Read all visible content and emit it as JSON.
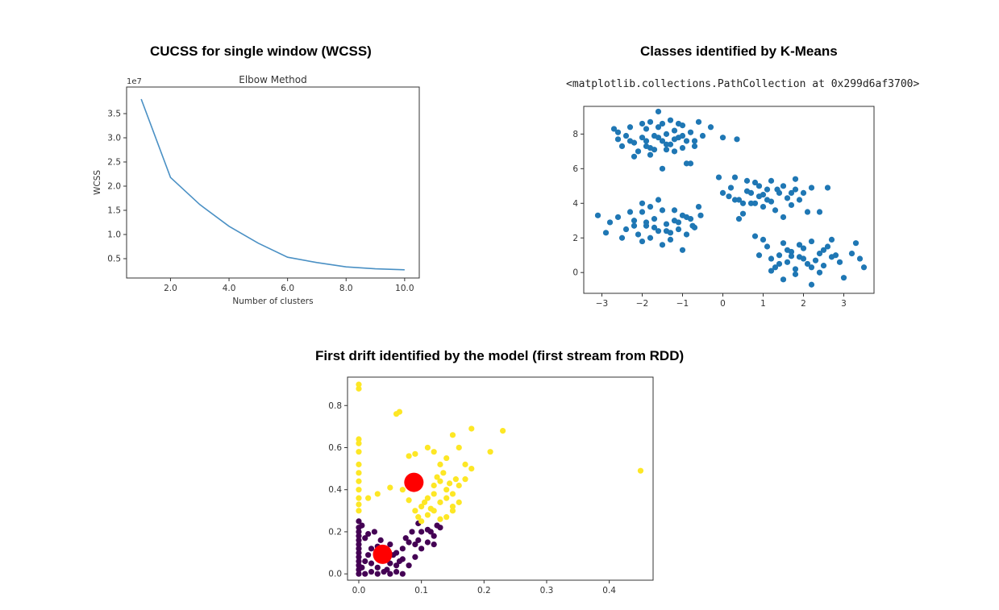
{
  "headings": {
    "wcss": "CUCSS for single window (WCSS)",
    "kmeans": "Classes identified by K-Means",
    "drift": "First drift identified by the model (first stream from RDD)"
  },
  "repr_text": "<matplotlib.collections.PathCollection at 0x299d6af3700>",
  "chart_data": [
    {
      "id": "elbow",
      "type": "line",
      "title": "Elbow Method",
      "xlabel": "Number of clusters",
      "ylabel": "WCSS",
      "offset_text": "1e7",
      "xlim": [
        0.5,
        10.5
      ],
      "ylim": [
        0.1,
        4.05
      ],
      "xticks": [
        2,
        4,
        6,
        8,
        10
      ],
      "yticks": [
        0.5,
        1.0,
        1.5,
        2.0,
        2.5,
        3.0,
        3.5
      ],
      "x": [
        1,
        2,
        3,
        4,
        5,
        6,
        7,
        8,
        9,
        10
      ],
      "y": [
        3.8,
        2.18,
        1.62,
        1.17,
        0.82,
        0.53,
        0.42,
        0.33,
        0.29,
        0.27
      ],
      "color": "#4a90c4"
    },
    {
      "id": "kmeans",
      "type": "scatter",
      "xlim": [
        -3.45,
        3.75
      ],
      "ylim": [
        -1.2,
        9.6
      ],
      "xticks": [
        -3,
        -2,
        -1,
        0,
        1,
        2,
        3
      ],
      "yticks": [
        0,
        2,
        4,
        6,
        8
      ],
      "color": "#1f77b4",
      "points": [
        [
          -2.6,
          8.1
        ],
        [
          -2.4,
          7.9
        ],
        [
          -2.2,
          7.5
        ],
        [
          -2.0,
          7.8
        ],
        [
          -1.9,
          8.3
        ],
        [
          -1.8,
          7.2
        ],
        [
          -1.7,
          7.9
        ],
        [
          -1.6,
          8.4
        ],
        [
          -1.5,
          7.6
        ],
        [
          -1.4,
          8.0
        ],
        [
          -1.3,
          7.4
        ],
        [
          -1.2,
          8.2
        ],
        [
          -1.1,
          7.8
        ],
        [
          -1.0,
          8.5
        ],
        [
          -0.9,
          7.6
        ],
        [
          -0.8,
          8.1
        ],
        [
          -0.7,
          7.3
        ],
        [
          -0.6,
          8.7
        ],
        [
          -2.5,
          7.3
        ],
        [
          -2.3,
          8.4
        ],
        [
          -2.1,
          7.0
        ],
        [
          -1.9,
          7.6
        ],
        [
          -1.7,
          7.1
        ],
        [
          -1.6,
          9.3
        ],
        [
          -1.5,
          8.6
        ],
        [
          -1.4,
          7.1
        ],
        [
          -1.3,
          8.8
        ],
        [
          -1.2,
          7.0
        ],
        [
          -1.1,
          8.6
        ],
        [
          -1.0,
          7.2
        ],
        [
          -0.9,
          6.3
        ],
        [
          -0.8,
          6.3
        ],
        [
          -1.5,
          6.0
        ],
        [
          -2.2,
          6.7
        ],
        [
          -1.8,
          6.8
        ],
        [
          -1.2,
          7.7
        ],
        [
          -0.5,
          7.9
        ],
        [
          -0.3,
          8.4
        ],
        [
          0.0,
          7.8
        ],
        [
          0.35,
          7.7
        ],
        [
          -2.7,
          8.3
        ],
        [
          -2.0,
          8.6
        ],
        [
          -1.0,
          7.9
        ],
        [
          -0.7,
          7.6
        ],
        [
          -1.8,
          8.7
        ],
        [
          -2.3,
          7.6
        ],
        [
          -1.6,
          7.8
        ],
        [
          -1.4,
          7.4
        ],
        [
          -1.9,
          7.3
        ],
        [
          -2.6,
          7.7
        ],
        [
          -2.8,
          2.9
        ],
        [
          -2.6,
          3.2
        ],
        [
          -2.4,
          2.5
        ],
        [
          -2.2,
          3.0
        ],
        [
          -2.1,
          2.2
        ],
        [
          -2.0,
          3.5
        ],
        [
          -1.9,
          2.7
        ],
        [
          -1.8,
          2.0
        ],
        [
          -1.7,
          3.1
        ],
        [
          -1.6,
          2.4
        ],
        [
          -1.5,
          3.6
        ],
        [
          -1.4,
          2.8
        ],
        [
          -1.3,
          1.9
        ],
        [
          -1.2,
          3.0
        ],
        [
          -1.1,
          2.5
        ],
        [
          -1.0,
          3.3
        ],
        [
          -0.9,
          2.2
        ],
        [
          -0.8,
          3.1
        ],
        [
          -0.7,
          2.6
        ],
        [
          -0.6,
          3.8
        ],
        [
          -3.1,
          3.3
        ],
        [
          -2.9,
          2.3
        ],
        [
          -2.5,
          2.0
        ],
        [
          -2.3,
          3.5
        ],
        [
          -2.0,
          1.8
        ],
        [
          -1.8,
          3.8
        ],
        [
          -1.6,
          4.2
        ],
        [
          -1.5,
          1.6
        ],
        [
          -1.3,
          2.3
        ],
        [
          -1.0,
          1.3
        ],
        [
          -0.9,
          3.2
        ],
        [
          -0.55,
          3.3
        ],
        [
          -1.7,
          2.6
        ],
        [
          -1.9,
          2.9
        ],
        [
          -2.2,
          2.7
        ],
        [
          -1.4,
          2.4
        ],
        [
          -1.1,
          2.9
        ],
        [
          -2.0,
          4.0
        ],
        [
          -1.2,
          3.6
        ],
        [
          -0.75,
          2.7
        ],
        [
          0.0,
          4.6
        ],
        [
          0.2,
          4.9
        ],
        [
          0.4,
          4.2
        ],
        [
          0.5,
          3.4
        ],
        [
          0.6,
          4.7
        ],
        [
          0.7,
          4.0
        ],
        [
          0.8,
          5.2
        ],
        [
          0.9,
          4.4
        ],
        [
          1.0,
          3.8
        ],
        [
          1.1,
          4.8
        ],
        [
          1.2,
          4.1
        ],
        [
          1.3,
          3.6
        ],
        [
          1.4,
          4.6
        ],
        [
          1.5,
          5.0
        ],
        [
          1.6,
          4.3
        ],
        [
          1.7,
          3.9
        ],
        [
          1.8,
          4.8
        ],
        [
          1.9,
          4.2
        ],
        [
          2.0,
          4.6
        ],
        [
          2.1,
          3.5
        ],
        [
          -0.1,
          5.5
        ],
        [
          0.3,
          5.5
        ],
        [
          0.6,
          5.3
        ],
        [
          0.9,
          5.0
        ],
        [
          1.2,
          5.3
        ],
        [
          1.5,
          3.2
        ],
        [
          1.8,
          5.4
        ],
        [
          2.2,
          4.9
        ],
        [
          2.4,
          3.5
        ],
        [
          0.4,
          3.1
        ],
        [
          0.8,
          4.0
        ],
        [
          1.0,
          4.5
        ],
        [
          0.3,
          4.2
        ],
        [
          0.5,
          4.0
        ],
        [
          1.35,
          4.8
        ],
        [
          2.6,
          4.9
        ],
        [
          0.15,
          4.4
        ],
        [
          0.7,
          4.6
        ],
        [
          1.1,
          4.2
        ],
        [
          1.7,
          4.6
        ],
        [
          0.8,
          2.1
        ],
        [
          0.9,
          1.0
        ],
        [
          1.1,
          1.5
        ],
        [
          1.2,
          0.8
        ],
        [
          1.3,
          0.3
        ],
        [
          1.4,
          1.0
        ],
        [
          1.5,
          1.7
        ],
        [
          1.6,
          0.6
        ],
        [
          1.7,
          1.2
        ],
        [
          1.8,
          0.2
        ],
        [
          1.9,
          0.9
        ],
        [
          2.0,
          1.4
        ],
        [
          2.1,
          0.5
        ],
        [
          2.2,
          1.8
        ],
        [
          2.3,
          0.7
        ],
        [
          2.4,
          1.1
        ],
        [
          2.5,
          0.4
        ],
        [
          2.6,
          1.5
        ],
        [
          2.7,
          0.9
        ],
        [
          2.9,
          0.6
        ],
        [
          1.0,
          1.9
        ],
        [
          1.2,
          0.1
        ],
        [
          1.5,
          -0.4
        ],
        [
          1.8,
          -0.1
        ],
        [
          2.2,
          -0.7
        ],
        [
          2.4,
          0.0
        ],
        [
          3.0,
          -0.3
        ],
        [
          3.2,
          1.1
        ],
        [
          3.3,
          1.7
        ],
        [
          3.4,
          0.8
        ],
        [
          3.5,
          0.3
        ],
        [
          1.7,
          0.95
        ],
        [
          2.0,
          0.8
        ],
        [
          2.5,
          1.3
        ],
        [
          1.4,
          0.5
        ],
        [
          2.8,
          1.0
        ],
        [
          1.9,
          1.6
        ],
        [
          2.2,
          0.3
        ],
        [
          1.6,
          1.3
        ],
        [
          2.7,
          1.9
        ]
      ]
    },
    {
      "id": "drift",
      "type": "scatter",
      "xlim": [
        -0.018,
        0.47
      ],
      "ylim": [
        -0.03,
        0.935
      ],
      "xticks": [
        0.0,
        0.1,
        0.2,
        0.3,
        0.4
      ],
      "yticks": [
        0.0,
        0.2,
        0.4,
        0.6,
        0.8
      ],
      "series": [
        {
          "color": "#440154",
          "points": [
            [
              0,
              0.0
            ],
            [
              0,
              0.02
            ],
            [
              0,
              0.04
            ],
            [
              0,
              0.06
            ],
            [
              0,
              0.08
            ],
            [
              0,
              0.1
            ],
            [
              0,
              0.12
            ],
            [
              0,
              0.14
            ],
            [
              0,
              0.16
            ],
            [
              0,
              0.18
            ],
            [
              0,
              0.2
            ],
            [
              0,
              0.22
            ],
            [
              0,
              0.25
            ],
            [
              0.01,
              0.0
            ],
            [
              0.02,
              0.01
            ],
            [
              0.03,
              0.0
            ],
            [
              0.04,
              0.01
            ],
            [
              0.05,
              0.0
            ],
            [
              0.06,
              0.01
            ],
            [
              0.07,
              0.0
            ],
            [
              0.005,
              0.03
            ],
            [
              0.01,
              0.06
            ],
            [
              0.015,
              0.09
            ],
            [
              0.02,
              0.12
            ],
            [
              0.01,
              0.17
            ],
            [
              0.02,
              0.05
            ],
            [
              0.03,
              0.03
            ],
            [
              0.04,
              0.08
            ],
            [
              0.05,
              0.05
            ],
            [
              0.06,
              0.04
            ],
            [
              0.07,
              0.07
            ],
            [
              0.08,
              0.04
            ],
            [
              0.09,
              0.08
            ],
            [
              0.1,
              0.12
            ],
            [
              0.11,
              0.15
            ],
            [
              0.12,
              0.18
            ],
            [
              0.13,
              0.22
            ],
            [
              0.1,
              0.2
            ],
            [
              0.08,
              0.15
            ],
            [
              0.07,
              0.12
            ],
            [
              0.06,
              0.1
            ],
            [
              0.085,
              0.2
            ],
            [
              0.095,
              0.24
            ],
            [
              0.075,
              0.17
            ],
            [
              0.12,
              0.14
            ],
            [
              0.015,
              0.19
            ],
            [
              0.03,
              0.13
            ],
            [
              0.045,
              0.02
            ],
            [
              0.055,
              0.09
            ],
            [
              0.065,
              0.06
            ],
            [
              0.09,
              0.14
            ],
            [
              0.11,
              0.21
            ],
            [
              0.035,
              0.16
            ],
            [
              0.005,
              0.23
            ],
            [
              0.025,
              0.2
            ],
            [
              0.04,
              0.11
            ],
            [
              0.05,
              0.14
            ],
            [
              0.115,
              0.2
            ],
            [
              0.125,
              0.23
            ],
            [
              0.095,
              0.16
            ]
          ]
        },
        {
          "color": "#fde725",
          "points": [
            [
              0,
              0.3
            ],
            [
              0,
              0.33
            ],
            [
              0,
              0.36
            ],
            [
              0,
              0.4
            ],
            [
              0,
              0.44
            ],
            [
              0,
              0.48
            ],
            [
              0,
              0.52
            ],
            [
              0,
              0.58
            ],
            [
              0,
              0.62
            ],
            [
              0,
              0.64
            ],
            [
              0,
              0.88
            ],
            [
              0,
              0.9
            ],
            [
              0.06,
              0.76
            ],
            [
              0.065,
              0.77
            ],
            [
              0.015,
              0.36
            ],
            [
              0.03,
              0.38
            ],
            [
              0.05,
              0.41
            ],
            [
              0.07,
              0.4
            ],
            [
              0.08,
              0.35
            ],
            [
              0.09,
              0.3
            ],
            [
              0.1,
              0.32
            ],
            [
              0.11,
              0.28
            ],
            [
              0.12,
              0.3
            ],
            [
              0.13,
              0.34
            ],
            [
              0.14,
              0.36
            ],
            [
              0.15,
              0.38
            ],
            [
              0.16,
              0.42
            ],
            [
              0.17,
              0.45
            ],
            [
              0.18,
              0.5
            ],
            [
              0.12,
              0.42
            ],
            [
              0.13,
              0.44
            ],
            [
              0.14,
              0.4
            ],
            [
              0.15,
              0.3
            ],
            [
              0.16,
              0.34
            ],
            [
              0.11,
              0.36
            ],
            [
              0.12,
              0.38
            ],
            [
              0.13,
              0.26
            ],
            [
              0.14,
              0.27
            ],
            [
              0.15,
              0.32
            ],
            [
              0.1,
              0.25
            ],
            [
              0.11,
              0.6
            ],
            [
              0.12,
              0.58
            ],
            [
              0.13,
              0.52
            ],
            [
              0.14,
              0.55
            ],
            [
              0.15,
              0.66
            ],
            [
              0.18,
              0.69
            ],
            [
              0.21,
              0.58
            ],
            [
              0.23,
              0.68
            ],
            [
              0.45,
              0.49
            ],
            [
              0.09,
              0.57
            ],
            [
              0.08,
              0.56
            ],
            [
              0.16,
              0.6
            ],
            [
              0.17,
              0.52
            ],
            [
              0.135,
              0.48
            ],
            [
              0.125,
              0.46
            ],
            [
              0.145,
              0.43
            ],
            [
              0.155,
              0.45
            ],
            [
              0.105,
              0.34
            ],
            [
              0.115,
              0.31
            ],
            [
              0.095,
              0.27
            ]
          ]
        },
        {
          "name": "centroids",
          "color": "#ff0000",
          "size": 12,
          "points": [
            [
              0.088,
              0.435
            ],
            [
              0.038,
              0.093
            ]
          ]
        }
      ]
    }
  ]
}
